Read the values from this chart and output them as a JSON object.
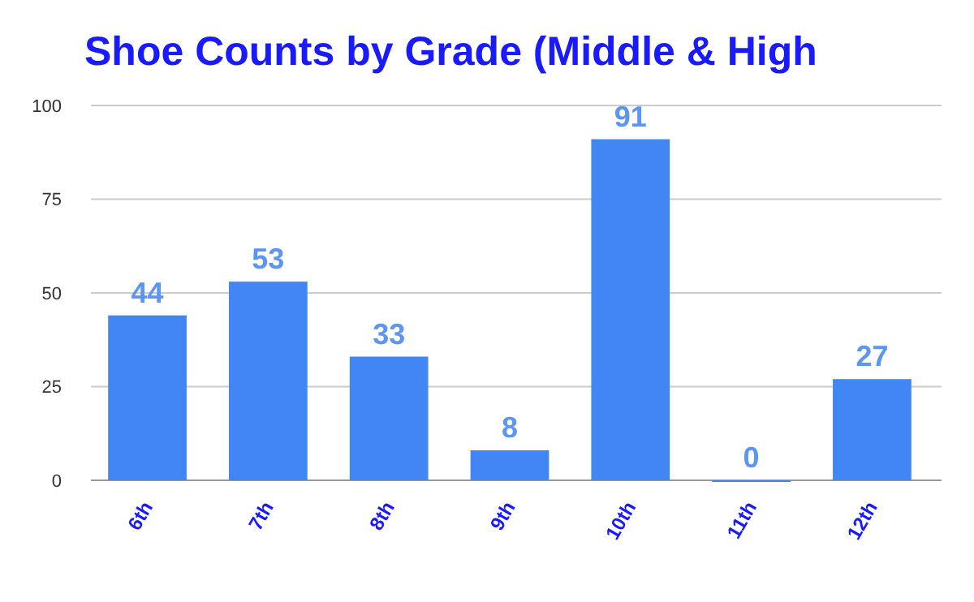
{
  "chart_data": {
    "type": "bar",
    "title": "Shoe Counts by Grade (Middle & High",
    "categories": [
      "6th",
      "7th",
      "8th",
      "9th",
      "10th",
      "11th",
      "12th"
    ],
    "values": [
      44,
      53,
      33,
      8,
      91,
      0,
      27
    ],
    "color": "#4285f4",
    "ylim": [
      0,
      100
    ],
    "yticks": [
      0,
      25,
      50,
      75,
      100
    ],
    "grid": "y",
    "data_labels": true
  }
}
